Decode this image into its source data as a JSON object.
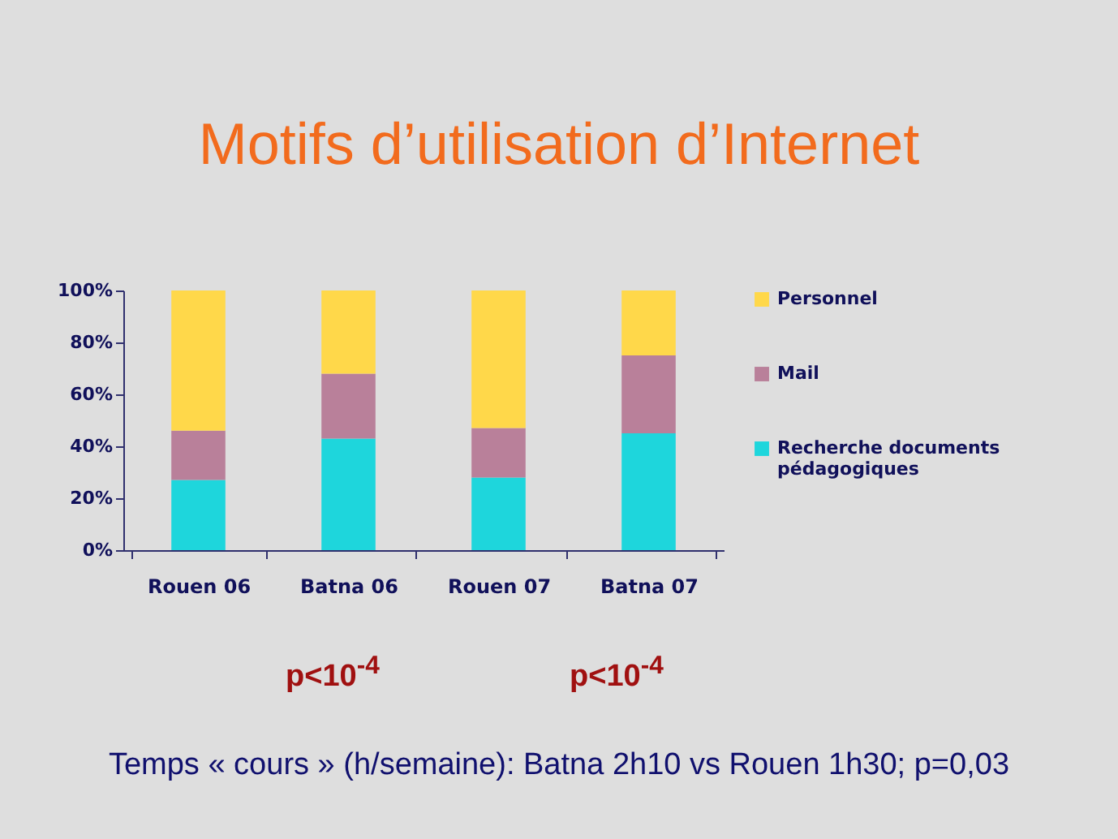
{
  "chart_data": {
    "type": "bar",
    "title": "Motifs d’utilisation d’Internet",
    "categories": [
      "Rouen 06",
      "Batna 06",
      "Rouen 07",
      "Batna 07"
    ],
    "stacked": true,
    "series": [
      {
        "name": "Recherche documents pédagogiques",
        "color": "#1ed6dc",
        "values": [
          27,
          43,
          28,
          45
        ]
      },
      {
        "name": "Mail",
        "color": "#b9809a",
        "values": [
          19,
          25,
          19,
          30
        ]
      },
      {
        "name": "Personnel",
        "color": "#ffd84a",
        "values": [
          54,
          32,
          53,
          25
        ]
      }
    ],
    "ylim": [
      0,
      100
    ],
    "yticks": [
      {
        "value": 0,
        "label": "0%"
      },
      {
        "value": 20,
        "label": "20%"
      },
      {
        "value": 40,
        "label": "40%"
      },
      {
        "value": 60,
        "label": "60%"
      },
      {
        "value": 80,
        "label": "80%"
      },
      {
        "value": 100,
        "label": "100%"
      }
    ],
    "legend": "right",
    "annotations": [
      "p<10$^{-4}$",
      "p<10$^{-4}$",
      "Temps « cours » (h/semaine): Batna 2h10 vs Rouen 1h30; p=0,03"
    ]
  }
}
